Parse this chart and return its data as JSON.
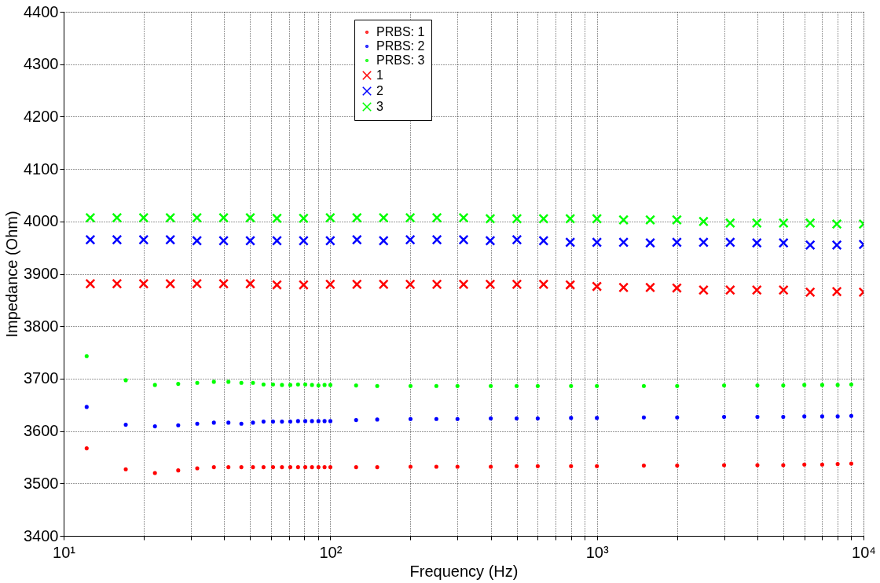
{
  "chart_data": {
    "type": "scatter",
    "xlabel": "Frequency (Hz)",
    "ylabel": "Impedance (Ohm)",
    "log": "x",
    "grid": true,
    "legend": "top",
    "xlim": [
      10,
      10000
    ],
    "xticks": [
      {
        "value": 10,
        "label": "10¹"
      },
      {
        "value": 20,
        "label": null
      },
      {
        "value": 30,
        "label": null
      },
      {
        "value": 40,
        "label": null
      },
      {
        "value": 50,
        "label": null
      },
      {
        "value": 60,
        "label": null
      },
      {
        "value": 70,
        "label": null
      },
      {
        "value": 80,
        "label": null
      },
      {
        "value": 90,
        "label": null
      },
      {
        "value": 100,
        "label": "10²"
      },
      {
        "value": 200,
        "label": null
      },
      {
        "value": 300,
        "label": null
      },
      {
        "value": 400,
        "label": null
      },
      {
        "value": 500,
        "label": null
      },
      {
        "value": 600,
        "label": null
      },
      {
        "value": 700,
        "label": null
      },
      {
        "value": 800,
        "label": null
      },
      {
        "value": 900,
        "label": null
      },
      {
        "value": 1000,
        "label": "10³"
      },
      {
        "value": 2000,
        "label": null
      },
      {
        "value": 3000,
        "label": null
      },
      {
        "value": 4000,
        "label": null
      },
      {
        "value": 5000,
        "label": null
      },
      {
        "value": 6000,
        "label": null
      },
      {
        "value": 7000,
        "label": null
      },
      {
        "value": 8000,
        "label": null
      },
      {
        "value": 9000,
        "label": null
      },
      {
        "value": 10000,
        "label": "10⁴"
      }
    ],
    "ylim": [
      3400,
      4400
    ],
    "yticks": [
      3400,
      3500,
      3600,
      3700,
      3800,
      3900,
      4000,
      4100,
      4200,
      4300,
      4400
    ],
    "series": [
      {
        "name": "PRBS: 1",
        "color": "#ff0000",
        "marker": "circle",
        "x": [
          12.2,
          17.1,
          22.0,
          26.9,
          31.7,
          36.6,
          41.5,
          46.4,
          51.3,
          56.2,
          61.0,
          65.9,
          70.8,
          75.7,
          80.6,
          85.4,
          90.3,
          95.2,
          100.1,
          125,
          150,
          200,
          250,
          300,
          400,
          500,
          600,
          800,
          1000,
          1500,
          2000,
          3000,
          4000,
          5000,
          6000,
          7000,
          8000,
          9000
        ],
        "values": [
          3567,
          3527,
          3520,
          3525,
          3529,
          3531,
          3531,
          3531,
          3531,
          3531,
          3531,
          3531,
          3531,
          3531,
          3531,
          3531,
          3531,
          3531,
          3531,
          3531,
          3531,
          3532,
          3532,
          3532,
          3532,
          3533,
          3533,
          3533,
          3533,
          3534,
          3534,
          3535,
          3535,
          3535,
          3536,
          3536,
          3537,
          3538
        ]
      },
      {
        "name": "PRBS: 2",
        "color": "#0000ff",
        "marker": "circle",
        "x": [
          12.2,
          17.1,
          22.0,
          26.9,
          31.7,
          36.6,
          41.5,
          46.4,
          51.3,
          56.2,
          61.0,
          65.9,
          70.8,
          75.7,
          80.6,
          85.4,
          90.3,
          95.2,
          100.1,
          125,
          150,
          200,
          250,
          300,
          400,
          500,
          600,
          800,
          1000,
          1500,
          2000,
          3000,
          4000,
          5000,
          6000,
          7000,
          8000,
          9000
        ],
        "values": [
          3646,
          3612,
          3609,
          3611,
          3614,
          3616,
          3616,
          3614,
          3616,
          3618,
          3618,
          3618,
          3618,
          3619,
          3619,
          3619,
          3619,
          3619,
          3619,
          3621,
          3622,
          3623,
          3623,
          3623,
          3624,
          3624,
          3624,
          3625,
          3625,
          3626,
          3626,
          3627,
          3627,
          3627,
          3628,
          3628,
          3628,
          3629
        ]
      },
      {
        "name": "PRBS: 3",
        "color": "#00ff00",
        "marker": "circle",
        "x": [
          12.2,
          17.1,
          22.0,
          26.9,
          31.7,
          36.6,
          41.5,
          46.4,
          51.3,
          56.2,
          61.0,
          65.9,
          70.8,
          75.7,
          80.6,
          85.4,
          90.3,
          95.2,
          100.1,
          125,
          150,
          200,
          250,
          300,
          400,
          500,
          600,
          800,
          1000,
          1500,
          2000,
          3000,
          4000,
          5000,
          6000,
          7000,
          8000,
          9000
        ],
        "values": [
          3743,
          3697,
          3688,
          3690,
          3692,
          3694,
          3694,
          3692,
          3692,
          3689,
          3689,
          3688,
          3688,
          3689,
          3689,
          3688,
          3687,
          3688,
          3688,
          3687,
          3686,
          3686,
          3686,
          3686,
          3686,
          3686,
          3686,
          3686,
          3686,
          3686,
          3686,
          3687,
          3687,
          3687,
          3688,
          3688,
          3688,
          3689
        ]
      },
      {
        "name": "1",
        "color": "#ff0000",
        "marker": "cross",
        "x": [
          12.59,
          15.85,
          19.95,
          25.12,
          31.62,
          39.81,
          50.12,
          63.1,
          79.43,
          100,
          125.9,
          158.5,
          199.5,
          251.2,
          316.2,
          398.1,
          501.2,
          631,
          794.3,
          1000,
          1259,
          1585,
          1995,
          2512,
          3162,
          3981,
          5012,
          6310,
          7943,
          10000
        ],
        "values": [
          3881,
          3881,
          3881,
          3881,
          3881,
          3881,
          3881,
          3879,
          3879,
          3880,
          3880,
          3880,
          3880,
          3880,
          3880,
          3880,
          3880,
          3880,
          3879,
          3876,
          3874,
          3874,
          3873,
          3869,
          3869,
          3869,
          3869,
          3865,
          3866,
          3865
        ]
      },
      {
        "name": "2",
        "color": "#0000ff",
        "marker": "cross",
        "x": [
          12.59,
          15.85,
          19.95,
          25.12,
          31.62,
          39.81,
          50.12,
          63.1,
          79.43,
          100,
          125.9,
          158.5,
          199.5,
          251.2,
          316.2,
          398.1,
          501.2,
          631,
          794.3,
          1000,
          1259,
          1585,
          1995,
          2512,
          3162,
          3981,
          5012,
          6310,
          7943,
          10000
        ],
        "values": [
          3965,
          3965,
          3965,
          3965,
          3963,
          3963,
          3963,
          3963,
          3963,
          3963,
          3965,
          3963,
          3965,
          3965,
          3965,
          3963,
          3965,
          3963,
          3960,
          3960,
          3960,
          3959,
          3960,
          3960,
          3960,
          3959,
          3959,
          3955,
          3955,
          3956
        ]
      },
      {
        "name": "3",
        "color": "#00ff00",
        "marker": "cross",
        "x": [
          12.59,
          15.85,
          19.95,
          25.12,
          31.62,
          39.81,
          50.12,
          63.1,
          79.43,
          100,
          125.9,
          158.5,
          199.5,
          251.2,
          316.2,
          398.1,
          501.2,
          631,
          794.3,
          1000,
          1259,
          1585,
          1995,
          2512,
          3162,
          3981,
          5012,
          6310,
          7943,
          10000
        ],
        "values": [
          4007,
          4007,
          4007,
          4007,
          4007,
          4007,
          4007,
          4006,
          4006,
          4007,
          4007,
          4007,
          4007,
          4007,
          4007,
          4005,
          4005,
          4005,
          4005,
          4005,
          4003,
          4003,
          4003,
          4000,
          3997,
          3997,
          3997,
          3997,
          3995,
          3995
        ]
      }
    ]
  }
}
